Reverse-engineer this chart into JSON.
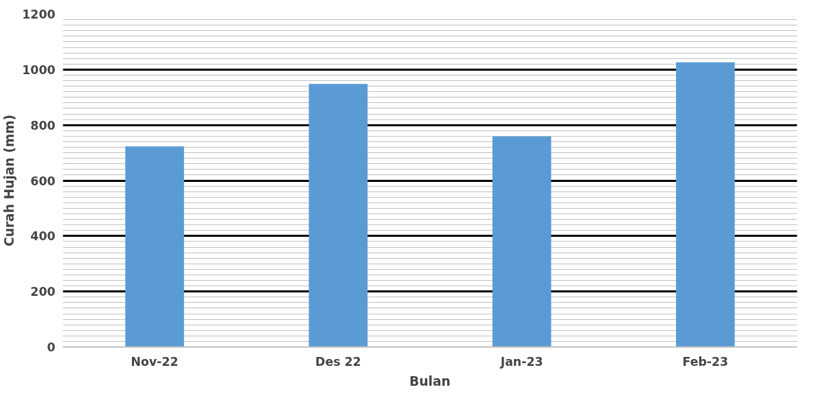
{
  "chart_data": {
    "type": "bar",
    "xlabel": "Bulan",
    "ylabel": "Curah Hujan (mm)",
    "categories": [
      "Nov-22",
      "Des 22",
      "Jan-23",
      "Feb-23"
    ],
    "values": [
      723,
      948,
      759,
      1026
    ],
    "color": "#5b9bd5",
    "ylim": [
      0,
      1200
    ],
    "yticks": [
      0,
      200,
      400,
      600,
      800,
      1000,
      1200
    ],
    "grid": "y"
  }
}
